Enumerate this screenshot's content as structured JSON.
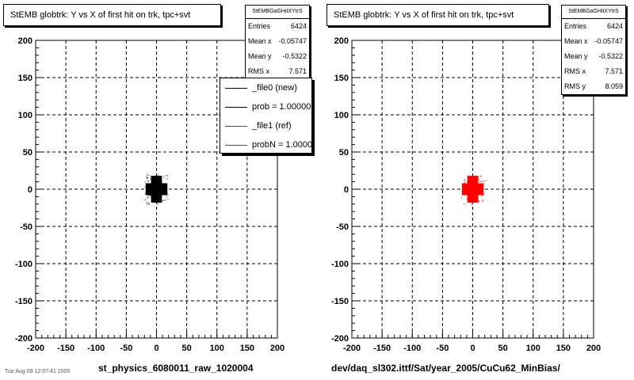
{
  "panels": [
    {
      "title": "StEMB globtrk: Y vs X of first hit on trk, tpc+svt",
      "stats": {
        "name": "StEMBGaGHitXYtrS",
        "rows": [
          {
            "label": "Entries",
            "value": "6424"
          },
          {
            "label": "Mean x",
            "value": "-0.05747"
          },
          {
            "label": "Mean y",
            "value": "-0.5322"
          },
          {
            "label": "RMS x",
            "value": "7.571"
          }
        ]
      },
      "legend": [
        {
          "label": "_file0 (new)",
          "color": "#000000"
        },
        {
          "label": "prob = 1.000000",
          "color": "#000000"
        },
        {
          "label": "_file1 (ref)",
          "color": "#ff0000"
        },
        {
          "label": "probN = 1.000000",
          "color": "#ff0000"
        }
      ],
      "xcaption": "st_physics_6080011_raw_1020004",
      "color": "#000000"
    },
    {
      "title": "StEMB globtrk: Y vs X of first hit on trk, tpc+svt",
      "stats": {
        "name": "StEMBGaGHitXYtrS",
        "rows": [
          {
            "label": "Entries",
            "value": "6424"
          },
          {
            "label": "Mean x",
            "value": "-0.05747"
          },
          {
            "label": "Mean y",
            "value": "-0.5322"
          },
          {
            "label": "RMS x",
            "value": "7.571"
          },
          {
            "label": "RMS y",
            "value": "8.059"
          }
        ]
      },
      "legend": [],
      "xcaption": "dev/daq_sl302.ittf/Sat/year_2005/CuCu62_MinBias/",
      "color": "#ff0000"
    }
  ],
  "footer": "Tue Aug 09 12:07:41 2005",
  "chart_data": [
    {
      "type": "scatter",
      "title": "StEMB globtrk: Y vs X of first hit on trk, tpc+svt",
      "xlabel": "st_physics_6080011_raw_1020004",
      "ylabel": "",
      "xlim": [
        -200,
        200
      ],
      "ylim": [
        -200,
        200
      ],
      "xticks": [
        -200,
        -150,
        -100,
        -50,
        0,
        50,
        100,
        150,
        200
      ],
      "yticks": [
        -200,
        -150,
        -100,
        -50,
        0,
        50,
        100,
        150,
        200
      ],
      "grid": true,
      "legend_position": "top-right",
      "series": [
        {
          "name": "_file0 (new)",
          "color": "#000000",
          "cluster": {
            "center": [
              0,
              0
            ],
            "core_halfwidth": 10,
            "arm_halfwidth": 18,
            "outer_halfwidth": 10
          }
        }
      ]
    },
    {
      "type": "scatter",
      "title": "StEMB globtrk: Y vs X of first hit on trk, tpc+svt",
      "xlabel": "dev/daq_sl302.ittf/Sat/year_2005/CuCu62_MinBias/",
      "ylabel": "",
      "xlim": [
        -200,
        200
      ],
      "ylim": [
        -200,
        200
      ],
      "xticks": [
        -200,
        -150,
        -100,
        -50,
        0,
        50,
        100,
        150,
        200
      ],
      "yticks": [
        -200,
        -150,
        -100,
        -50,
        0,
        50,
        100,
        150,
        200
      ],
      "grid": true,
      "series": [
        {
          "name": "_file1 (ref)",
          "color": "#ff0000",
          "cluster": {
            "center": [
              0,
              0
            ],
            "core_halfwidth": 10,
            "arm_halfwidth": 18,
            "outer_halfwidth": 10
          }
        }
      ]
    }
  ]
}
